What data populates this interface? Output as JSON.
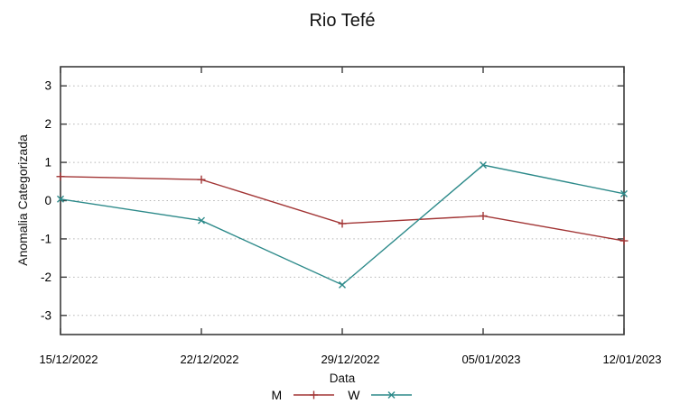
{
  "chart_data": {
    "type": "line",
    "title": "Rio Tefé",
    "xlabel": "Data",
    "ylabel": "Anomalia Categorizada",
    "categories": [
      "15/12/2022",
      "22/12/2022",
      "29/12/2022",
      "05/01/2023",
      "12/01/2023"
    ],
    "series": [
      {
        "name": "M",
        "color": "#a23535",
        "marker": "plus",
        "values": [
          0.63,
          0.55,
          -0.6,
          -0.4,
          -1.05
        ]
      },
      {
        "name": "W",
        "color": "#2d8a8a",
        "marker": "cross",
        "values": [
          0.04,
          -0.52,
          -2.2,
          0.93,
          0.18
        ]
      }
    ],
    "yticks": [
      3,
      2,
      1,
      0,
      -1,
      -2,
      -3
    ],
    "ylim": [
      -3.5,
      3.5
    ],
    "grid": "horizontal-dotted",
    "legend_position": "bottom-center"
  },
  "colors": {
    "background": "#ffffff",
    "axis": "#3c3c3c",
    "grid": "#b4b4b4",
    "text": "#000000"
  }
}
